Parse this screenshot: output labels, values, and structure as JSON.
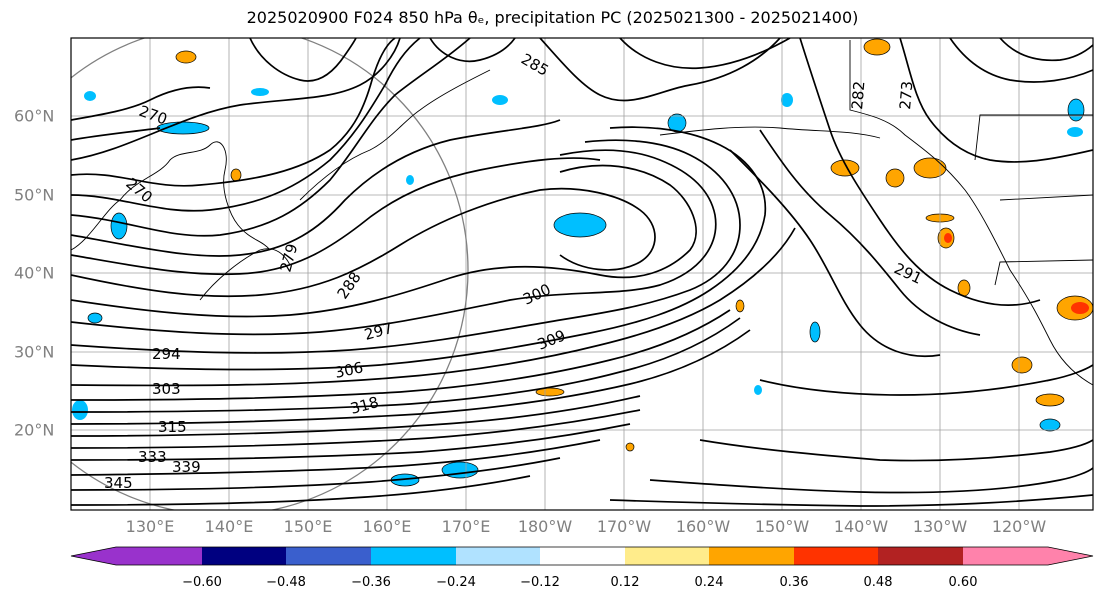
{
  "title": "2025020900 F024 850 hPa θₑ, precipitation PC (2025021300 - 2025021400)",
  "map": {
    "lat_labels": [
      "60°N",
      "50°N",
      "40°N",
      "30°N",
      "20°N"
    ],
    "lon_labels": [
      "130°E",
      "140°E",
      "150°E",
      "160°E",
      "170°E",
      "180°W",
      "170°W",
      "160°W",
      "150°W",
      "140°W",
      "130°W",
      "120°W"
    ],
    "contour_labels": [
      "270",
      "270",
      "279",
      "285",
      "288",
      "291",
      "294",
      "297",
      "300",
      "303",
      "306",
      "309",
      "315",
      "318",
      "333",
      "339",
      "345",
      "273",
      "282"
    ],
    "contour_color": "#000000",
    "grid_color": "#a0a0a0"
  },
  "colorbar": {
    "ticks": [
      "−0.60",
      "−0.48",
      "−0.36",
      "−0.24",
      "−0.12",
      "0.12",
      "0.24",
      "0.36",
      "0.48",
      "0.60"
    ],
    "colors": [
      "#9932cc",
      "#000080",
      "#3a5fcd",
      "#00bfff",
      "#b0e2ff",
      "#ffffff",
      "#ffec8b",
      "#ffa500",
      "#ff3300",
      "#b22222",
      "#ff82ab"
    ]
  }
}
